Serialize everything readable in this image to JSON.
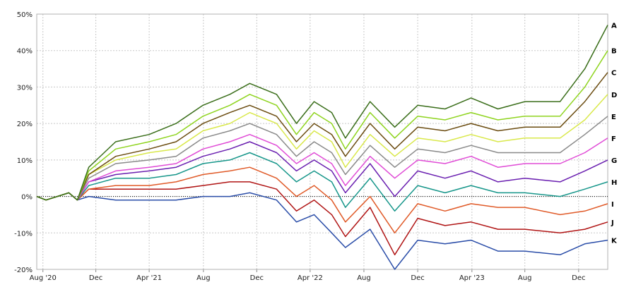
{
  "chart_data": {
    "type": "line",
    "title": "",
    "xlabel": "",
    "ylabel": "",
    "ylim": [
      -20,
      50
    ],
    "y_ticks": [
      50,
      40,
      30,
      20,
      10,
      0,
      -10,
      -20
    ],
    "y_tick_labels": [
      "50%",
      "40%",
      "30%",
      "20%",
      "10%",
      "0%",
      "-10%",
      "-20%"
    ],
    "x_range": [
      "2020-07-20",
      "2024-02-05"
    ],
    "x_ticks": [
      {
        "date": "2020-08-03",
        "label": "Aug '20"
      },
      {
        "date": "2020-12-01",
        "label": "Dec"
      },
      {
        "date": "2021-04-01",
        "label": "Apr '21"
      },
      {
        "date": "2021-08-02",
        "label": "Aug"
      },
      {
        "date": "2021-12-01",
        "label": "Dec"
      },
      {
        "date": "2022-04-01",
        "label": "Apr '22"
      },
      {
        "date": "2022-08-01",
        "label": "Aug"
      },
      {
        "date": "2022-12-01",
        "label": "Dec"
      },
      {
        "date": "2023-04-03",
        "label": "Apr '23"
      },
      {
        "date": "2023-08-01",
        "label": "Aug"
      },
      {
        "date": "2023-12-01",
        "label": "Dec"
      }
    ],
    "grid": true,
    "legend": "series labels at right end of lines",
    "reference_line": 0,
    "x": [
      "2020-07-20",
      "2020-08-10",
      "2020-10-01",
      "2020-10-20",
      "2020-11-15",
      "2021-01-15",
      "2021-04-01",
      "2021-06-01",
      "2021-08-01",
      "2021-10-01",
      "2021-11-15",
      "2022-01-15",
      "2022-03-01",
      "2022-04-10",
      "2022-05-20",
      "2022-06-20",
      "2022-08-15",
      "2022-10-10",
      "2022-12-01",
      "2023-02-01",
      "2023-04-01",
      "2023-06-01",
      "2023-08-01",
      "2023-10-20",
      "2023-12-15",
      "2024-02-05"
    ],
    "series": [
      {
        "name": "A",
        "color": "#3a6e1a",
        "values": [
          0,
          -1,
          1,
          -1,
          8,
          15,
          17,
          20,
          25,
          28,
          31,
          28,
          20,
          26,
          23,
          16,
          26,
          19,
          25,
          24,
          27,
          24,
          26,
          26,
          35,
          47
        ]
      },
      {
        "name": "B",
        "color": "#8fd41f",
        "values": [
          0,
          -1,
          1,
          -1,
          7,
          13,
          15,
          17,
          22,
          25,
          28,
          25,
          17,
          23,
          20,
          13,
          23,
          16,
          22,
          21,
          23,
          21,
          22,
          22,
          30,
          40
        ]
      },
      {
        "name": "C",
        "color": "#6b4c10",
        "values": [
          0,
          -1,
          1,
          -1,
          6,
          11,
          13,
          15,
          20,
          23,
          25,
          22,
          15,
          20,
          17,
          11,
          20,
          13,
          19,
          18,
          20,
          18,
          19,
          19,
          26,
          34
        ]
      },
      {
        "name": "D",
        "color": "#d9e84a",
        "values": [
          0,
          -1,
          1,
          -1,
          6,
          10,
          12,
          13,
          18,
          20,
          23,
          20,
          13,
          18,
          15,
          8,
          17,
          11,
          16,
          15,
          17,
          15,
          16,
          16,
          21,
          28
        ]
      },
      {
        "name": "E",
        "color": "#8a8a8a",
        "values": [
          0,
          -1,
          1,
          -1,
          5,
          9,
          10,
          11,
          16,
          18,
          20,
          17,
          11,
          15,
          12,
          6,
          14,
          8,
          13,
          12,
          14,
          12,
          12,
          12,
          17,
          22
        ]
      },
      {
        "name": "F",
        "color": "#e04bd6",
        "values": [
          0,
          -1,
          1,
          -1,
          4,
          7,
          8,
          9,
          13,
          15,
          17,
          14,
          9,
          12,
          9,
          3,
          11,
          5,
          10,
          9,
          11,
          8,
          9,
          9,
          12,
          16
        ]
      },
      {
        "name": "G",
        "color": "#6a1fb0",
        "values": [
          0,
          -1,
          1,
          -1,
          4,
          6,
          7,
          8,
          11,
          13,
          15,
          12,
          7,
          10,
          7,
          1,
          9,
          0,
          7,
          5,
          7,
          4,
          5,
          4,
          7,
          10
        ]
      },
      {
        "name": "H",
        "color": "#16968a",
        "values": [
          0,
          -1,
          1,
          -1,
          3,
          5,
          5,
          6,
          9,
          10,
          12,
          9,
          4,
          7,
          4,
          -3,
          5,
          -4,
          3,
          1,
          3,
          1,
          1,
          0,
          2,
          4
        ]
      },
      {
        "name": "I",
        "color": "#e05a28",
        "values": [
          0,
          -1,
          1,
          -1,
          2,
          3,
          3,
          4,
          6,
          7,
          8,
          5,
          0,
          3,
          -1,
          -7,
          0,
          -10,
          -2,
          -4,
          -2,
          -3,
          -3,
          -5,
          -4,
          -2
        ]
      },
      {
        "name": "J",
        "color": "#b01414",
        "values": [
          0,
          -1,
          1,
          -1,
          2,
          2,
          2,
          2,
          3,
          4,
          4,
          2,
          -4,
          -1,
          -5,
          -11,
          -3,
          -16,
          -6,
          -8,
          -7,
          -9,
          -9,
          -10,
          -9,
          -7
        ]
      },
      {
        "name": "K",
        "color": "#2a4da8",
        "values": [
          0,
          -1,
          1,
          -1,
          0,
          -1,
          -1,
          -1,
          0,
          0,
          1,
          -1,
          -7,
          -5,
          -10,
          -14,
          -9,
          -20,
          -12,
          -13,
          -12,
          -15,
          -15,
          -16,
          -13,
          -12
        ]
      }
    ]
  }
}
